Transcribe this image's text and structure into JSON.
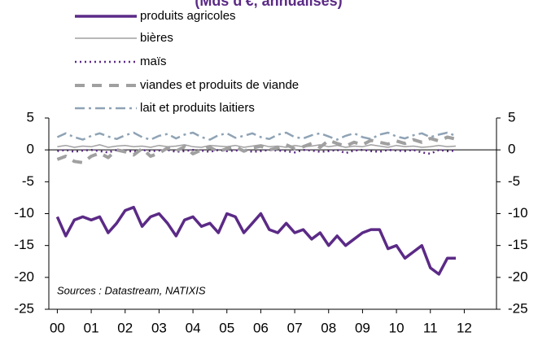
{
  "chart_data": {
    "type": "line",
    "title": "(Mds d'€, annualisés)",
    "annotation": "Sources : Datastream, NATIXIS",
    "x": [
      0,
      0.25,
      0.5,
      0.75,
      1,
      1.25,
      1.5,
      1.75,
      2,
      2.25,
      2.5,
      2.75,
      3,
      3.25,
      3.5,
      3.75,
      4,
      4.25,
      4.5,
      4.75,
      5,
      5.25,
      5.5,
      5.75,
      6,
      6.25,
      6.5,
      6.75,
      7,
      7.25,
      7.5,
      7.75,
      8,
      8.25,
      8.5,
      8.75,
      9,
      9.25,
      9.5,
      9.75,
      10,
      10.25,
      10.5,
      10.75,
      11,
      11.25,
      11.5,
      11.75
    ],
    "xlim": [
      -0.25,
      12.95
    ],
    "xticks": [
      {
        "value": 0,
        "label": "00"
      },
      {
        "value": 1,
        "label": "01"
      },
      {
        "value": 2,
        "label": "02"
      },
      {
        "value": 3,
        "label": "03"
      },
      {
        "value": 4,
        "label": "04"
      },
      {
        "value": 5,
        "label": "05"
      },
      {
        "value": 6,
        "label": "06"
      },
      {
        "value": 7,
        "label": "07"
      },
      {
        "value": 8,
        "label": "08"
      },
      {
        "value": 9,
        "label": "09"
      },
      {
        "value": 10,
        "label": "10"
      },
      {
        "value": 11,
        "label": "11"
      },
      {
        "value": 12,
        "label": "12"
      }
    ],
    "ylim": [
      -25,
      5
    ],
    "yticks": [
      -25,
      -20,
      -15,
      -10,
      -5,
      0,
      5
    ],
    "y2lim": [
      -25,
      5
    ],
    "y2ticks": [
      -25,
      -20,
      -15,
      -10,
      -5,
      0,
      5
    ],
    "series": [
      {
        "name": "produits agricoles",
        "color": "#5b2a86",
        "linestyle": "solid",
        "linewidth": 3.5,
        "values": [
          -10.5,
          -13.5,
          -11,
          -10.5,
          -11,
          -10.5,
          -13,
          -11.5,
          -9.5,
          -9,
          -12,
          -10.5,
          -10,
          -11.5,
          -13.5,
          -11,
          -10.5,
          -12,
          -11.5,
          -13,
          -10,
          -10.5,
          -13,
          -11.5,
          -10,
          -12.5,
          -13,
          -11.5,
          -13,
          -12.5,
          -14,
          -13,
          -15,
          -13.5,
          -15,
          -14,
          -13,
          -12.5,
          -12.5,
          -15.5,
          -15,
          -17,
          -16,
          -15,
          -18.5,
          -19.5,
          -17,
          -17
        ]
      },
      {
        "name": "bières",
        "color": "#a0a0a0",
        "linestyle": "solid",
        "linewidth": 1.5,
        "values": [
          0.5,
          0.7,
          0.4,
          0.6,
          0.5,
          0.8,
          0.4,
          0.6,
          0.7,
          0.5,
          0.6,
          0.4,
          0.7,
          0.5,
          0.6,
          0.8,
          0.5,
          0.4,
          0.7,
          0.6,
          0.5,
          0.7,
          0.4,
          0.6,
          0.8,
          0.5,
          0.6,
          0.4,
          0.7,
          0.5,
          0.6,
          0.8,
          0.5,
          0.7,
          0.4,
          0.6,
          0.5,
          0.8,
          0.6,
          0.4,
          0.7,
          0.5,
          0.6,
          0.4,
          0.5,
          0.7,
          0.5,
          0.6
        ]
      },
      {
        "name": "maïs",
        "color": "#5b2a86",
        "linestyle": "dotted",
        "linewidth": 2.5,
        "values": [
          -0.2,
          0,
          -0.3,
          -0.1,
          0,
          -0.2,
          -0.4,
          0,
          -0.1,
          -0.3,
          0,
          -0.2,
          -0.1,
          0,
          -0.3,
          -0.2,
          0,
          -0.1,
          -0.3,
          0,
          -0.2,
          -0.1,
          0,
          -0.3,
          -0.2,
          0,
          -0.1,
          -0.2,
          -0.4,
          0,
          -0.1,
          -0.3,
          -0.2,
          0,
          -0.5,
          -0.1,
          0,
          -0.2,
          -0.3,
          0,
          -0.1,
          -0.2,
          0,
          -0.4,
          -0.6,
          0,
          -0.2,
          -0.1
        ]
      },
      {
        "name": "viandes et produits de viande",
        "color": "#a0a0a0",
        "linestyle": "dashed",
        "linewidth": 4,
        "values": [
          -1.5,
          -1,
          -1.8,
          -2,
          -1,
          -0.5,
          -1.2,
          0,
          -0.3,
          -0.8,
          0.2,
          -1,
          -0.5,
          0.3,
          -0.2,
          0.5,
          -0.6,
          0,
          0.4,
          -0.3,
          0.2,
          0.5,
          -0.2,
          0.3,
          0.6,
          0,
          0.3,
          0.8,
          0.2,
          0.5,
          1,
          0.4,
          1.5,
          1,
          0.6,
          1.2,
          0.8,
          1.5,
          1.2,
          0.9,
          1.4,
          1,
          1.6,
          1.2,
          1.8,
          1.4,
          2,
          1.7
        ]
      },
      {
        "name": "lait et produits laitiers",
        "color": "#8fa3b5",
        "linestyle": "dashdot",
        "linewidth": 2.5,
        "values": [
          2,
          2.6,
          2,
          1.6,
          2.2,
          2.6,
          2.1,
          1.7,
          2.3,
          2.7,
          2,
          1.6,
          2.2,
          2.5,
          1.8,
          2.4,
          2.7,
          2,
          1.6,
          2.3,
          2.6,
          1.9,
          2.2,
          2.6,
          2,
          1.7,
          2.4,
          2.7,
          2,
          1.8,
          2.3,
          2.6,
          2.1,
          1.6,
          2.2,
          2.6,
          2,
          1.7,
          2.4,
          2.7,
          2.1,
          1.8,
          2.3,
          2.6,
          2,
          2.4,
          2.7,
          2.2
        ]
      }
    ]
  }
}
